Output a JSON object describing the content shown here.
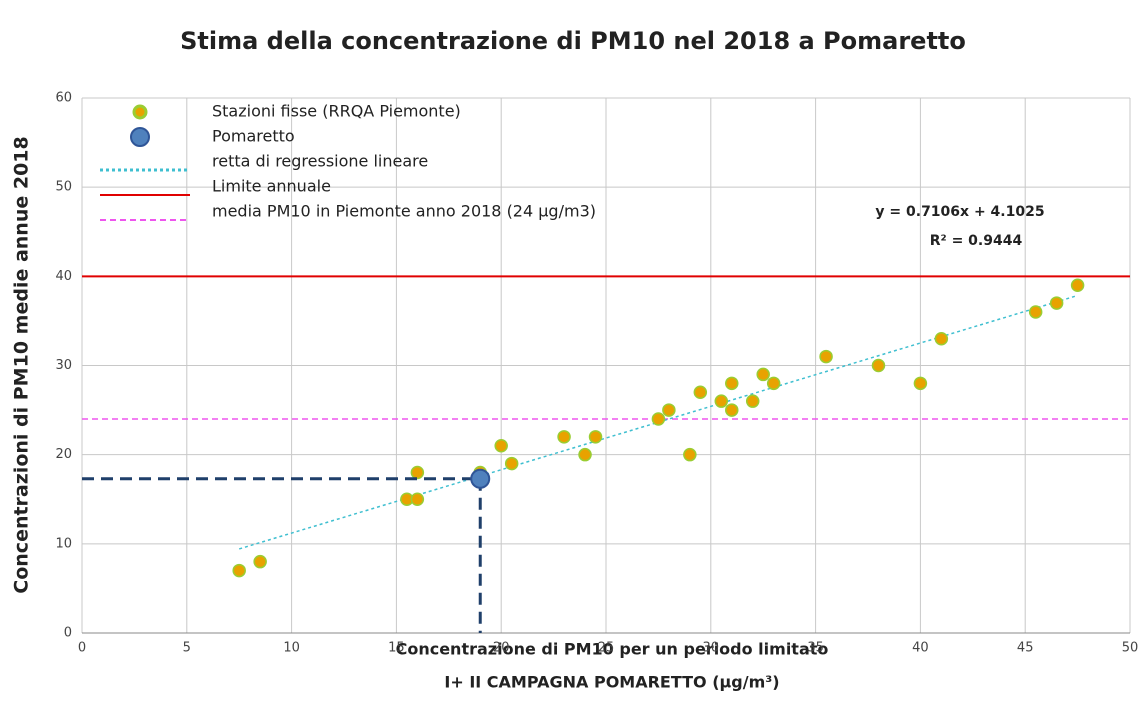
{
  "chart_data": {
    "type": "scatter",
    "title": "Stima della concentrazione di PM10 nel 2018 a Pomaretto",
    "x_label": [
      "Concentrazione di PM10 per un periodo limitato",
      "I+ II CAMPAGNA POMARETTO (µg/m³)"
    ],
    "y_label": "Concentrazioni di PM10 medie annue 2018",
    "xlim": [
      0,
      50
    ],
    "xticks": [
      0,
      5,
      10,
      15,
      20,
      25,
      30,
      35,
      40,
      45,
      50
    ],
    "ylim": [
      0,
      60
    ],
    "yticks": [
      0,
      10,
      20,
      30,
      40,
      50,
      60
    ],
    "grid": true,
    "series": [
      {
        "name": "Stazioni fisse (RRQA Piemonte)",
        "color": "#e8a200",
        "edge_color": "#9acd32",
        "x": [
          7.5,
          8.5,
          15.5,
          16,
          16,
          19,
          20,
          20.5,
          23,
          24,
          24.5,
          27.5,
          28,
          29,
          29.5,
          30.5,
          31,
          31,
          32,
          32.5,
          33,
          35.5,
          38,
          40,
          41,
          45.5,
          46.5,
          47.5
        ],
        "values": [
          7,
          8,
          15,
          15,
          18,
          18,
          21,
          19,
          22,
          20,
          22,
          24,
          25,
          20,
          27,
          26,
          25,
          28,
          26,
          29,
          28,
          31,
          30,
          28,
          33,
          36,
          37,
          39
        ]
      },
      {
        "name": "Pomaretto",
        "color": "#4f81bd",
        "edge_color": "#2f5597",
        "guide_color": "#1f3f6a",
        "x": [
          19
        ],
        "values": [
          17.3
        ]
      }
    ],
    "trendline": {
      "name": "retta di regressione lineare",
      "color": "#3fbfd0",
      "x": [
        7.5,
        47.5
      ],
      "values": [
        9.43,
        37.85
      ],
      "equation": "y = 0.7106x + 4.1025",
      "r2": "R² = 0.9444"
    },
    "hlines": [
      {
        "name": "Limite annuale",
        "color": "#e00000",
        "value": 40,
        "dashed": false
      },
      {
        "name": "media PM10 in Piemonte anno 2018 (24 µg/m3)",
        "color": "#ee55ee",
        "value": 24,
        "dashed": true
      }
    ]
  }
}
